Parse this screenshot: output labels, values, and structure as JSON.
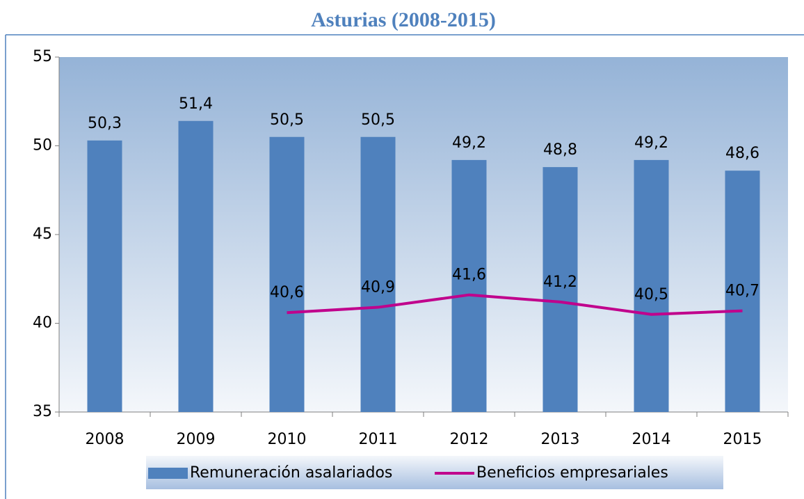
{
  "chart_data": {
    "type": "bar",
    "title": "Asturias (2008-2015)",
    "categories": [
      "2008",
      "2009",
      "2010",
      "2011",
      "2012",
      "2013",
      "2014",
      "2015"
    ],
    "series": [
      {
        "name": "Remuneración asalariados",
        "type": "bar",
        "color": "#4f81bd",
        "values": [
          50.3,
          51.4,
          50.5,
          50.5,
          49.2,
          48.8,
          49.2,
          48.6
        ],
        "value_labels": [
          "50,3",
          "51,4",
          "50,5",
          "50,5",
          "49,2",
          "48,8",
          "49,2",
          "48,6"
        ]
      },
      {
        "name": "Beneficios empresariales",
        "type": "line",
        "color": "#c0008c",
        "values": [
          null,
          null,
          40.6,
          40.9,
          41.6,
          41.2,
          40.5,
          40.7
        ],
        "value_labels": [
          null,
          null,
          "40,6",
          "40,9",
          "41,6",
          "41,2",
          "40,5",
          "40,7"
        ]
      }
    ],
    "ylim": [
      35,
      55
    ],
    "yticks": [
      35,
      40,
      45,
      50,
      55
    ],
    "legend": "bottom"
  }
}
